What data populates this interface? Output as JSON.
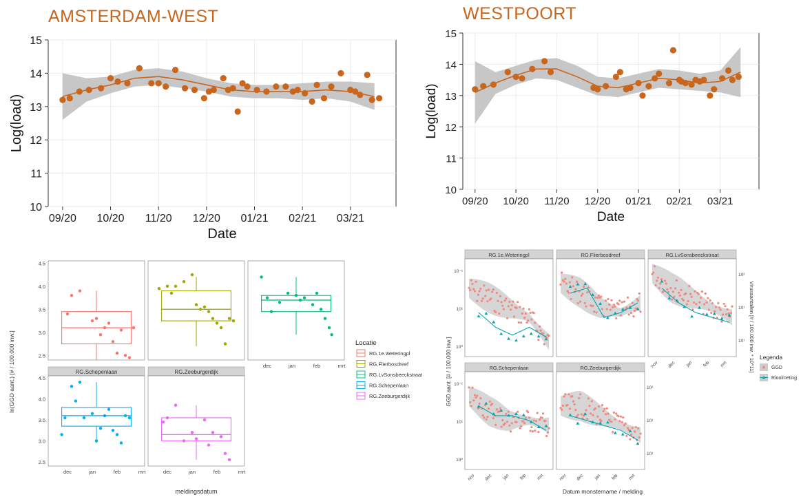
{
  "colors": {
    "orange": "#c8661e",
    "band": "#bdbdbd",
    "panel_strip": "#d4d4d4",
    "grid": "#ebebeb",
    "red": "#f8766d",
    "olive": "#a3a500",
    "green": "#00bf7d",
    "cyan": "#00b0f6",
    "magenta": "#e76bf3",
    "teal": "#00a5b0",
    "salmon": "#f08a80"
  },
  "chart_data": [
    {
      "id": "amsterdam-west",
      "type": "scatter",
      "title": "AMSTERDAM-WEST",
      "xlabel": "Date",
      "ylabel": "Log(load)",
      "x_ticks": [
        "09/20",
        "10/20",
        "11/20",
        "12/20",
        "01/21",
        "02/21",
        "03/21"
      ],
      "ylim": [
        10,
        15
      ],
      "y_ticks": [
        "10",
        "11",
        "12",
        "13",
        "14",
        "15"
      ],
      "grid": true,
      "smooth": {
        "x": [
          0,
          0.5,
          1,
          1.5,
          2,
          2.5,
          3,
          3.5,
          4,
          4.5,
          5,
          5.5,
          6,
          6.5
        ],
        "y": [
          13.3,
          13.5,
          13.65,
          13.85,
          13.9,
          13.8,
          13.65,
          13.5,
          13.45,
          13.45,
          13.45,
          13.5,
          13.45,
          13.3
        ],
        "band_lo": [
          12.6,
          13.15,
          13.4,
          13.6,
          13.65,
          13.55,
          13.45,
          13.3,
          13.25,
          13.25,
          13.2,
          13.25,
          13.15,
          12.9
        ],
        "band_hi": [
          14.0,
          13.85,
          13.9,
          14.1,
          14.15,
          14.05,
          13.85,
          13.7,
          13.65,
          13.65,
          13.7,
          13.75,
          13.75,
          13.7
        ]
      },
      "x": [
        0,
        0.15,
        0.35,
        0.55,
        0.8,
        1.0,
        1.15,
        1.35,
        1.6,
        1.85,
        2.0,
        2.15,
        2.35,
        2.55,
        2.75,
        2.95,
        3.05,
        3.15,
        3.35,
        3.45,
        3.55,
        3.65,
        3.75,
        3.85,
        4.05,
        4.25,
        4.45,
        4.65,
        4.8,
        4.9,
        5.05,
        5.2,
        5.3,
        5.45,
        5.6,
        5.8,
        6.0,
        6.1,
        6.2,
        6.35,
        6.45,
        6.6
      ],
      "y": [
        13.2,
        13.25,
        13.45,
        13.5,
        13.55,
        13.85,
        13.75,
        13.7,
        14.15,
        13.7,
        13.7,
        13.6,
        14.1,
        13.55,
        13.5,
        13.25,
        13.45,
        13.5,
        13.85,
        13.5,
        13.55,
        12.85,
        13.7,
        13.6,
        13.5,
        13.45,
        13.6,
        13.6,
        13.45,
        13.5,
        13.4,
        13.15,
        13.65,
        13.25,
        13.6,
        14.0,
        13.5,
        13.45,
        13.35,
        13.95,
        13.2,
        13.25
      ]
    },
    {
      "id": "westpoort",
      "type": "scatter",
      "title": "WESTPOORT",
      "xlabel": "Date",
      "ylabel": "Log(load)",
      "x_ticks": [
        "09/20",
        "10/20",
        "11/20",
        "12/20",
        "01/21",
        "02/21",
        "03/21"
      ],
      "ylim": [
        10,
        15
      ],
      "y_ticks": [
        "10",
        "11",
        "12",
        "13",
        "14",
        "15"
      ],
      "grid": true,
      "smooth": {
        "x": [
          0,
          0.5,
          1,
          1.5,
          2,
          2.5,
          3,
          3.5,
          4,
          4.5,
          5,
          5.5,
          6,
          6.5
        ],
        "y": [
          13.1,
          13.4,
          13.65,
          13.85,
          13.85,
          13.6,
          13.3,
          13.25,
          13.4,
          13.55,
          13.5,
          13.4,
          13.45,
          13.75
        ],
        "band_lo": [
          12.1,
          13.05,
          13.35,
          13.55,
          13.5,
          13.25,
          13.0,
          12.95,
          13.1,
          13.25,
          13.2,
          13.15,
          13.1,
          12.95
        ],
        "band_hi": [
          14.1,
          13.75,
          13.95,
          14.15,
          14.2,
          13.95,
          13.6,
          13.55,
          13.7,
          13.85,
          13.8,
          13.7,
          13.8,
          14.55
        ]
      },
      "x": [
        0,
        0.2,
        0.45,
        0.8,
        1.0,
        1.15,
        1.4,
        1.7,
        1.85,
        2.9,
        3.0,
        3.2,
        3.45,
        3.55,
        3.7,
        3.8,
        4.0,
        4.1,
        4.25,
        4.4,
        4.5,
        4.75,
        4.85,
        5.0,
        5.05,
        5.15,
        5.3,
        5.4,
        5.5,
        5.6,
        5.75,
        5.85,
        6.05,
        6.2,
        6.3,
        6.45
      ],
      "y": [
        13.2,
        13.3,
        13.35,
        13.75,
        13.6,
        13.55,
        13.85,
        14.1,
        13.75,
        13.25,
        13.2,
        13.3,
        13.6,
        13.75,
        13.2,
        13.25,
        13.4,
        13.0,
        13.3,
        13.55,
        13.7,
        13.4,
        14.45,
        13.5,
        13.45,
        13.4,
        13.35,
        13.5,
        13.45,
        13.5,
        13.0,
        13.2,
        13.55,
        13.8,
        13.5,
        13.6
      ]
    },
    {
      "id": "boxplots",
      "type": "box",
      "ylabel": "ln(GGD aant.) [# / 100.000 inw.]",
      "xlabel": "meldingsdatum",
      "y_ticks": [
        "2.5",
        "3.0",
        "3.5",
        "4.0",
        "4.5"
      ],
      "x_ticks": [
        "dec",
        "jan",
        "feb",
        "mrt"
      ],
      "legend_title": "Locatie",
      "legend_position": "right",
      "panels": [
        {
          "name": "RG.1e.Weteringpl",
          "strip": "",
          "q1": 2.75,
          "median": 3.1,
          "q3": 3.45,
          "lo": 2.4,
          "hi": 3.9,
          "points": [
            [
              0.15,
              3.4
            ],
            [
              0.2,
              3.8
            ],
            [
              0.3,
              3.9
            ],
            [
              0.45,
              3.25
            ],
            [
              0.5,
              3.3
            ],
            [
              0.55,
              2.95
            ],
            [
              0.6,
              3.1
            ],
            [
              0.65,
              3.2
            ],
            [
              0.7,
              2.8
            ],
            [
              0.75,
              2.55
            ],
            [
              0.8,
              3.05
            ],
            [
              0.85,
              2.5
            ],
            [
              0.9,
              2.45
            ],
            [
              0.95,
              3.1
            ]
          ],
          "color": "#f8766d"
        },
        {
          "name": "RG.Flierbosdreef",
          "strip": "",
          "q1": 3.25,
          "median": 3.5,
          "q3": 3.9,
          "lo": 2.7,
          "hi": 4.2,
          "points": [
            [
              0.05,
              3.95
            ],
            [
              0.15,
              4.0
            ],
            [
              0.2,
              3.85
            ],
            [
              0.25,
              4.0
            ],
            [
              0.35,
              4.1
            ],
            [
              0.45,
              4.25
            ],
            [
              0.5,
              3.6
            ],
            [
              0.55,
              3.5
            ],
            [
              0.6,
              3.55
            ],
            [
              0.65,
              3.45
            ],
            [
              0.7,
              3.3
            ],
            [
              0.75,
              3.2
            ],
            [
              0.8,
              3.1
            ],
            [
              0.85,
              2.75
            ],
            [
              0.9,
              3.3
            ],
            [
              0.95,
              3.25
            ]
          ],
          "color": "#a3a500"
        },
        {
          "name": "RG.LvSonsbeeckstraat",
          "strip": "",
          "q1": 3.45,
          "median": 3.7,
          "q3": 3.8,
          "lo": 2.95,
          "hi": 4.2,
          "points": [
            [
              0.08,
              4.2
            ],
            [
              0.15,
              3.75
            ],
            [
              0.2,
              3.45
            ],
            [
              0.3,
              3.65
            ],
            [
              0.4,
              3.85
            ],
            [
              0.5,
              3.8
            ],
            [
              0.55,
              3.7
            ],
            [
              0.6,
              3.75
            ],
            [
              0.7,
              3.6
            ],
            [
              0.75,
              3.85
            ],
            [
              0.8,
              3.5
            ],
            [
              0.85,
              3.3
            ],
            [
              0.9,
              3.1
            ],
            [
              0.93,
              2.95
            ]
          ],
          "color": "#00bf7d"
        },
        {
          "name": "RG.Schepenlaan",
          "strip": "RG.Schepenlaan",
          "q1": 3.35,
          "median": 3.6,
          "q3": 3.8,
          "lo": 2.95,
          "hi": 4.4,
          "points": [
            [
              0.08,
              3.15
            ],
            [
              0.12,
              3.55
            ],
            [
              0.2,
              4.3
            ],
            [
              0.25,
              3.95
            ],
            [
              0.3,
              4.4
            ],
            [
              0.35,
              3.55
            ],
            [
              0.45,
              3.65
            ],
            [
              0.5,
              3.0
            ],
            [
              0.55,
              3.3
            ],
            [
              0.6,
              3.6
            ],
            [
              0.65,
              3.75
            ],
            [
              0.7,
              3.25
            ],
            [
              0.75,
              3.15
            ],
            [
              0.8,
              2.95
            ],
            [
              0.85,
              3.6
            ],
            [
              0.9,
              3.55
            ]
          ],
          "color": "#00b0f6"
        },
        {
          "name": "RG.Zeeburgerdijk",
          "strip": "RG.Zeeburgerdijk",
          "q1": 3.0,
          "median": 3.15,
          "q3": 3.55,
          "lo": 2.55,
          "hi": 3.85,
          "points": [
            [
              0.1,
              3.45
            ],
            [
              0.15,
              3.55
            ],
            [
              0.25,
              3.85
            ],
            [
              0.35,
              3.0
            ],
            [
              0.45,
              3.2
            ],
            [
              0.5,
              3.05
            ],
            [
              0.6,
              3.5
            ],
            [
              0.65,
              2.9
            ],
            [
              0.7,
              3.2
            ],
            [
              0.8,
              3.1
            ],
            [
              0.85,
              2.7
            ],
            [
              0.9,
              2.55
            ]
          ],
          "color": "#e76bf3"
        }
      ]
    },
    {
      "id": "facets",
      "type": "scatter",
      "ylabel": "GGD aant. [# / 100.000 inw.]",
      "ylabel_right": "Virusaantallen [# / 100.000 inw. * 10^11]",
      "xlabel": "Datum monstername / melding",
      "x_ticks": [
        "nov",
        "dec",
        "jan",
        "feb",
        "mrt"
      ],
      "y_ticks_left": [
        "10⁻¹",
        "10¹",
        "10⁰"
      ],
      "y_ticks_right": [
        "10²",
        "10¹",
        "10¹"
      ],
      "legend_title": "Legenda",
      "legend_position": "right",
      "series": [
        {
          "name": "GGD"
        },
        {
          "name": "Rioolmeting"
        }
      ],
      "panels": [
        {
          "strip": "RG.1e.Weteringpl"
        },
        {
          "strip": "RG.Flierbosdreef"
        },
        {
          "strip": "RG.LvSonsbeeckstraat"
        },
        {
          "strip": "RG.Schepenlaan"
        },
        {
          "strip": "RG.Zeeburgerdijk"
        }
      ]
    }
  ]
}
